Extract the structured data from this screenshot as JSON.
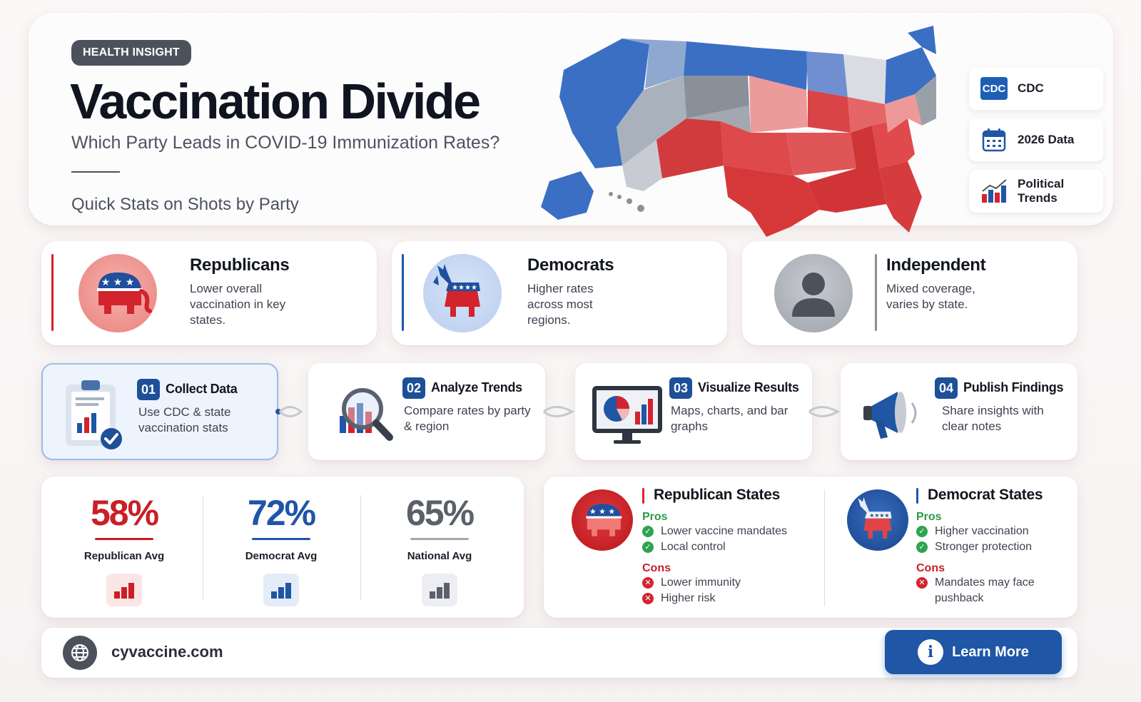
{
  "hero": {
    "badge": "HEALTH INSIGHT",
    "title": "Vaccination Divide",
    "subtitle": "Which Party Leads in COVID-19 Immunization Rates?",
    "quick_stats": "Quick Stats on Shots by Party"
  },
  "sources": [
    {
      "label": "CDC",
      "icon": "cdc-logo",
      "icon_text": "CDC"
    },
    {
      "label": "2026 Data",
      "icon": "calendar-icon"
    },
    {
      "label_line1": "Political",
      "label_line2": "Trends",
      "icon": "bar-chart-icon"
    }
  ],
  "parties": [
    {
      "title": "Republicans",
      "desc": "Lower overall vaccination in key states.",
      "color": "#d3232c",
      "icon": "elephant-icon"
    },
    {
      "title": "Democrats",
      "desc": "Higher rates across most regions.",
      "color": "#1f56a6",
      "icon": "donkey-icon"
    },
    {
      "title": "Independent",
      "desc": "Mixed coverage, varies by state.",
      "color": "#8a8f97",
      "icon": "person-icon"
    }
  ],
  "steps": [
    {
      "num": "01",
      "title": "Collect Data",
      "desc": "Use CDC & state vaccination stats",
      "icon": "clipboard-icon"
    },
    {
      "num": "02",
      "title": "Analyze Trends",
      "desc": "Compare rates by party & region",
      "icon": "magnifier-icon"
    },
    {
      "num": "03",
      "title": "Visualize Results",
      "desc": "Maps, charts, and bar graphs",
      "icon": "monitor-chart-icon"
    },
    {
      "num": "04",
      "title": "Publish Findings",
      "desc": "Share insights with clear notes",
      "icon": "megaphone-icon"
    }
  ],
  "averages": [
    {
      "value": "58%",
      "label": "Republican Avg",
      "color": "#c91f27"
    },
    {
      "value": "72%",
      "label": "Democrat Avg",
      "color": "#1f56a6"
    },
    {
      "value": "65%",
      "label": "National Avg",
      "color": "#5b6069"
    }
  ],
  "comparison": {
    "pros_label": "Pros",
    "cons_label": "Cons",
    "republican": {
      "title": "Republican States",
      "pros": [
        "Lower vaccine mandates",
        "Local control"
      ],
      "cons": [
        "Lower immunity",
        "Higher risk"
      ]
    },
    "democrat": {
      "title": "Democrat States",
      "pros": [
        "Higher vaccination",
        "Stronger protection"
      ],
      "cons": [
        "Mandates may face pushback"
      ]
    }
  },
  "footer": {
    "site": "cyvaccine.com",
    "button": "Learn More",
    "button_icon": "i"
  },
  "colors": {
    "red": "#d3232c",
    "blue": "#1f56a6",
    "gray": "#8a8f97",
    "green": "#2fa34f"
  }
}
